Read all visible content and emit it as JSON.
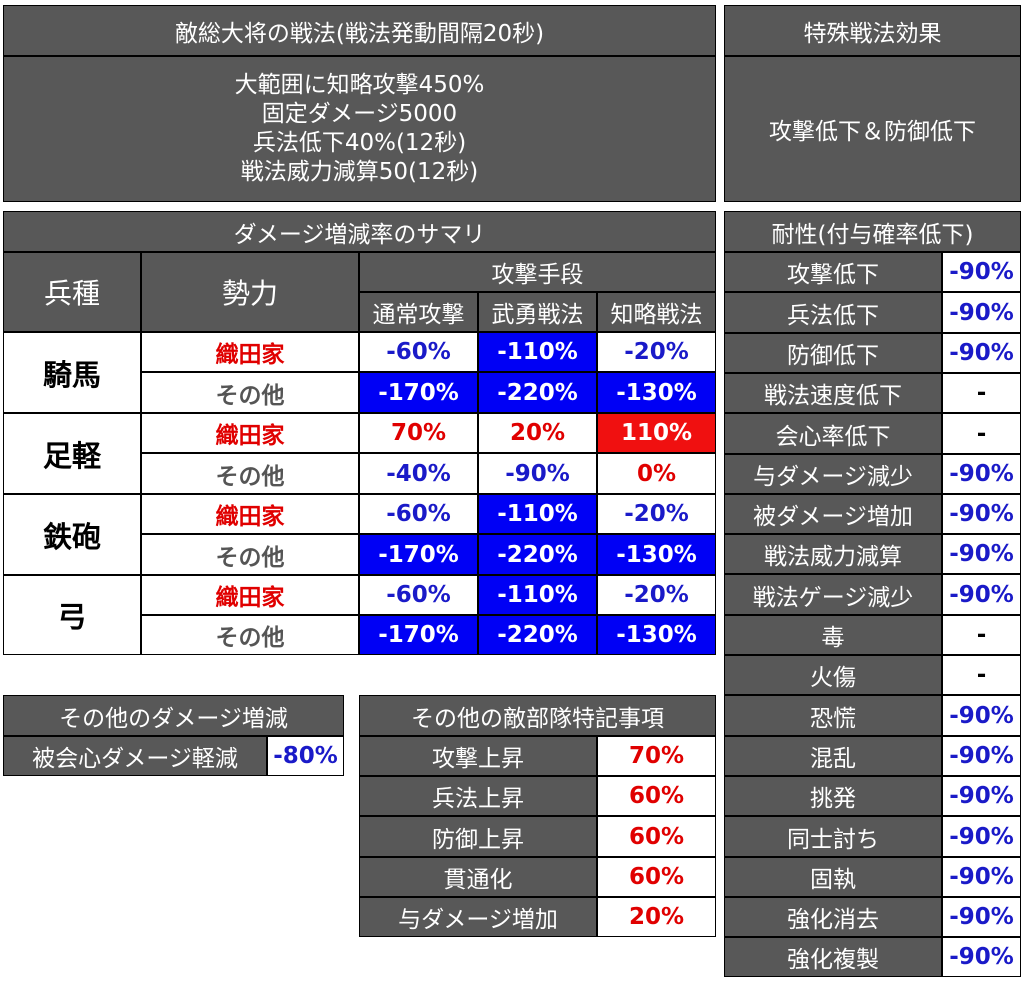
{
  "commander": {
    "title": "敵総大将の戦法(戦法発動間隔20秒)",
    "lines": [
      "大範囲に知略攻撃450%",
      "固定ダメージ5000",
      "兵法低下40%(12秒)",
      "戦法威力減算50(12秒)"
    ]
  },
  "special": {
    "title": "特殊戦法効果",
    "text": "攻撃低下＆防御低下"
  },
  "summary": {
    "title": "ダメージ増減率のサマリ",
    "col_type": "兵種",
    "col_faction": "勢力",
    "col_attack": "攻撃手段",
    "attack_modes": [
      "通常攻撃",
      "武勇戦法",
      "知略戦法"
    ],
    "units": [
      {
        "name": "騎馬",
        "rows": [
          {
            "faction": "織田家",
            "vals": [
              "-60%",
              "-110%",
              "-20%"
            ]
          },
          {
            "faction": "その他",
            "vals": [
              "-170%",
              "-220%",
              "-130%"
            ]
          }
        ]
      },
      {
        "name": "足軽",
        "rows": [
          {
            "faction": "織田家",
            "vals": [
              "70%",
              "20%",
              "110%"
            ]
          },
          {
            "faction": "その他",
            "vals": [
              "-40%",
              "-90%",
              "0%"
            ]
          }
        ]
      },
      {
        "name": "鉄砲",
        "rows": [
          {
            "faction": "織田家",
            "vals": [
              "-60%",
              "-110%",
              "-20%"
            ]
          },
          {
            "faction": "その他",
            "vals": [
              "-170%",
              "-220%",
              "-130%"
            ]
          }
        ]
      },
      {
        "name": "弓",
        "rows": [
          {
            "faction": "織田家",
            "vals": [
              "-60%",
              "-110%",
              "-20%"
            ]
          },
          {
            "faction": "その他",
            "vals": [
              "-170%",
              "-220%",
              "-130%"
            ]
          }
        ]
      }
    ]
  },
  "resist": {
    "title": "耐性(付与確率低下)",
    "rows": [
      {
        "label": "攻撃低下",
        "value": "-90%"
      },
      {
        "label": "兵法低下",
        "value": "-90%"
      },
      {
        "label": "防御低下",
        "value": "-90%"
      },
      {
        "label": "戦法速度低下",
        "value": "-"
      },
      {
        "label": "会心率低下",
        "value": "-"
      },
      {
        "label": "与ダメージ減少",
        "value": "-90%"
      },
      {
        "label": "被ダメージ増加",
        "value": "-90%"
      },
      {
        "label": "戦法威力減算",
        "value": "-90%"
      },
      {
        "label": "戦法ゲージ減少",
        "value": "-90%"
      },
      {
        "label": "毒",
        "value": "-"
      },
      {
        "label": "火傷",
        "value": "-"
      },
      {
        "label": "恐慌",
        "value": "-90%"
      },
      {
        "label": "混乱",
        "value": "-90%"
      },
      {
        "label": "挑発",
        "value": "-90%"
      },
      {
        "label": "同士討ち",
        "value": "-90%"
      },
      {
        "label": "固執",
        "value": "-90%"
      },
      {
        "label": "強化消去",
        "value": "-90%"
      },
      {
        "label": "強化複製",
        "value": "-90%"
      }
    ]
  },
  "other_damage": {
    "title": "その他のダメージ増減",
    "label": "被会心ダメージ軽減",
    "value": "-80%"
  },
  "notes": {
    "title": "その他の敵部隊特記事項",
    "rows": [
      {
        "label": "攻撃上昇",
        "value": "70%"
      },
      {
        "label": "兵法上昇",
        "value": "60%"
      },
      {
        "label": "防御上昇",
        "value": "60%"
      },
      {
        "label": "貫通化",
        "value": "60%"
      },
      {
        "label": "与ダメージ増加",
        "value": "20%"
      }
    ]
  },
  "colors": {
    "header_gray": "#585858",
    "blue_cell": "#0000f5",
    "red_cell": "#f01010",
    "blue_text": "#1a1ac8",
    "red_text": "#e00000"
  }
}
